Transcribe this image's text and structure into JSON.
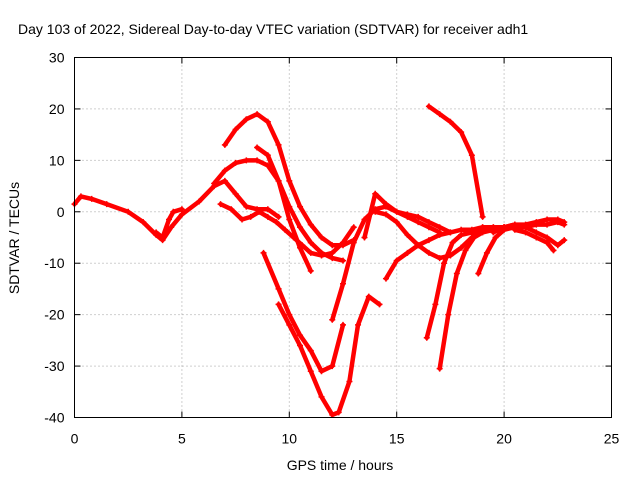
{
  "chart_data": {
    "type": "scatter",
    "title": "Day 103 of 2022, Sidereal Day-to-day VTEC variation (SDTVAR) for receiver adh1",
    "xlabel": "GPS time / hours",
    "ylabel": "SDTVAR / TECUs",
    "xlim": [
      0,
      25
    ],
    "ylim": [
      -40,
      30
    ],
    "xticks": [
      "0",
      "5",
      "10",
      "15",
      "20",
      "25"
    ],
    "yticks": [
      "-40",
      "-30",
      "-20",
      "-10",
      "0",
      "10",
      "20",
      "30"
    ],
    "grid": true,
    "marker_color": "#ff0000",
    "series": [
      {
        "x": [
          0.0,
          0.3,
          0.8,
          1.5,
          2.5,
          3.2,
          3.8,
          4.1,
          4.5,
          5.0,
          5.8,
          6.5,
          7.0,
          7.5,
          8.0,
          8.5,
          9.0,
          9.5
        ],
        "y": [
          1.5,
          3.0,
          2.5,
          1.5,
          0.0,
          -2.0,
          -4.5,
          -5.5,
          -3.0,
          -0.5,
          2.0,
          5.0,
          6.0,
          3.5,
          1.0,
          0.5,
          0.5,
          -1.0
        ]
      },
      {
        "x": [
          3.8,
          4.1,
          4.4,
          4.6,
          5.0
        ],
        "y": [
          -4.0,
          -5.0,
          -1.5,
          0.0,
          0.5
        ]
      },
      {
        "x": [
          6.8,
          7.3,
          7.8,
          8.2,
          8.6,
          9.0,
          9.4,
          9.8,
          10.2,
          10.6,
          11.0,
          11.5,
          12.0,
          12.5,
          13.0
        ],
        "y": [
          1.5,
          0.5,
          -1.5,
          -1.0,
          0.0,
          -1.0,
          -2.0,
          -3.5,
          -5.0,
          -6.5,
          -8.0,
          -8.5,
          -8.0,
          -6.0,
          -3.0
        ]
      },
      {
        "x": [
          6.5,
          7.0,
          7.5,
          8.0,
          8.5,
          9.0,
          9.5,
          10.0,
          10.5,
          11.0,
          11.5,
          12.0,
          12.5
        ],
        "y": [
          5.5,
          8.0,
          9.5,
          10.0,
          10.0,
          9.0,
          6.0,
          1.0,
          -3.0,
          -6.0,
          -8.0,
          -9.0,
          -9.5
        ]
      },
      {
        "x": [
          7.0,
          7.5,
          8.0,
          8.5,
          9.0,
          9.5,
          10.0,
          10.5,
          11.0,
          11.5,
          12.0,
          12.5,
          13.0
        ],
        "y": [
          13.0,
          16.0,
          18.0,
          19.0,
          17.5,
          13.0,
          6.0,
          1.0,
          -2.5,
          -5.0,
          -6.5,
          -6.5,
          -5.5
        ]
      },
      {
        "x": [
          8.5,
          9.0,
          9.5,
          10.0,
          10.5,
          11.0
        ],
        "y": [
          12.5,
          11.0,
          6.0,
          -1.5,
          -7.0,
          -11.5
        ]
      },
      {
        "x": [
          8.8,
          9.5,
          10.0,
          10.5,
          11.0,
          11.5,
          12.0,
          12.5
        ],
        "y": [
          -8.0,
          -15.0,
          -20.0,
          -24.0,
          -27.0,
          -31.0,
          -30.0,
          -22.0
        ]
      },
      {
        "x": [
          9.5,
          10.0,
          10.5,
          11.0,
          11.5,
          12.0,
          12.3,
          12.8,
          13.2,
          13.7,
          14.2
        ],
        "y": [
          -18.0,
          -22.0,
          -26.0,
          -31.0,
          -36.0,
          -39.5,
          -39.0,
          -33.0,
          -22.0,
          -16.5,
          -18.0
        ]
      },
      {
        "x": [
          12.0,
          12.5,
          13.0,
          13.5,
          14.0,
          14.5,
          15.0,
          15.5,
          16.0,
          16.5,
          17.0
        ],
        "y": [
          -21.0,
          -14.0,
          -6.0,
          -1.5,
          0.5,
          1.0,
          0.0,
          -1.0,
          -2.0,
          -3.0,
          -4.0
        ]
      },
      {
        "x": [
          13.5,
          14.0,
          14.5,
          15.0,
          15.5,
          16.0,
          16.5,
          17.0,
          17.5
        ],
        "y": [
          -5.0,
          3.5,
          1.5,
          0.0,
          -0.5,
          -1.0,
          -2.0,
          -3.0,
          -4.0
        ]
      },
      {
        "x": [
          14.0,
          14.5,
          15.0,
          15.5,
          16.0,
          16.5,
          17.0,
          17.5,
          18.0,
          18.5,
          19.0
        ],
        "y": [
          0.0,
          -0.5,
          -2.0,
          -4.5,
          -6.5,
          -8.0,
          -9.0,
          -8.5,
          -7.0,
          -5.0,
          -3.0
        ]
      },
      {
        "x": [
          14.5,
          15.0,
          15.5,
          16.0,
          16.5,
          17.0,
          17.5,
          18.0,
          18.5,
          19.0,
          19.5,
          20.0
        ],
        "y": [
          -13.0,
          -9.5,
          -8.0,
          -6.5,
          -5.5,
          -4.5,
          -4.0,
          -3.5,
          -3.5,
          -3.0,
          -3.0,
          -3.0
        ]
      },
      {
        "x": [
          16.5,
          17.0,
          17.5,
          18.0,
          18.5,
          19.0
        ],
        "y": [
          20.5,
          19.0,
          17.5,
          15.5,
          11.0,
          -1.0
        ]
      },
      {
        "x": [
          16.4,
          16.8,
          17.2,
          17.6,
          18.0,
          18.5,
          19.0,
          19.5,
          20.0
        ],
        "y": [
          -24.5,
          -18.0,
          -10.0,
          -6.0,
          -4.5,
          -4.0,
          -3.5,
          -3.0,
          -3.0
        ]
      },
      {
        "x": [
          17.0,
          17.4,
          17.8,
          18.2,
          18.6,
          19.0,
          19.5
        ],
        "y": [
          -30.5,
          -20.0,
          -12.0,
          -7.5,
          -5.0,
          -4.0,
          -3.5
        ]
      },
      {
        "x": [
          18.8,
          19.2,
          19.6,
          20.0,
          20.5,
          21.0,
          21.5,
          22.0,
          22.5,
          22.8
        ],
        "y": [
          -12.0,
          -8.0,
          -5.0,
          -3.5,
          -3.0,
          -3.0,
          -2.5,
          -2.5,
          -2.0,
          -2.5
        ]
      },
      {
        "x": [
          19.5,
          20.0,
          20.5,
          21.0,
          21.5,
          22.0,
          22.5,
          22.8
        ],
        "y": [
          -4.0,
          -3.0,
          -2.5,
          -3.0,
          -4.0,
          -5.0,
          -6.5,
          -5.5
        ]
      },
      {
        "x": [
          20.0,
          20.5,
          21.0,
          21.5,
          22.0,
          22.5,
          22.8
        ],
        "y": [
          -3.0,
          -2.5,
          -2.5,
          -2.0,
          -1.5,
          -1.5,
          -2.0
        ]
      },
      {
        "x": [
          20.5,
          21.0,
          21.5,
          22.0,
          22.3
        ],
        "y": [
          -3.5,
          -4.0,
          -5.0,
          -6.0,
          -7.5
        ]
      }
    ]
  }
}
